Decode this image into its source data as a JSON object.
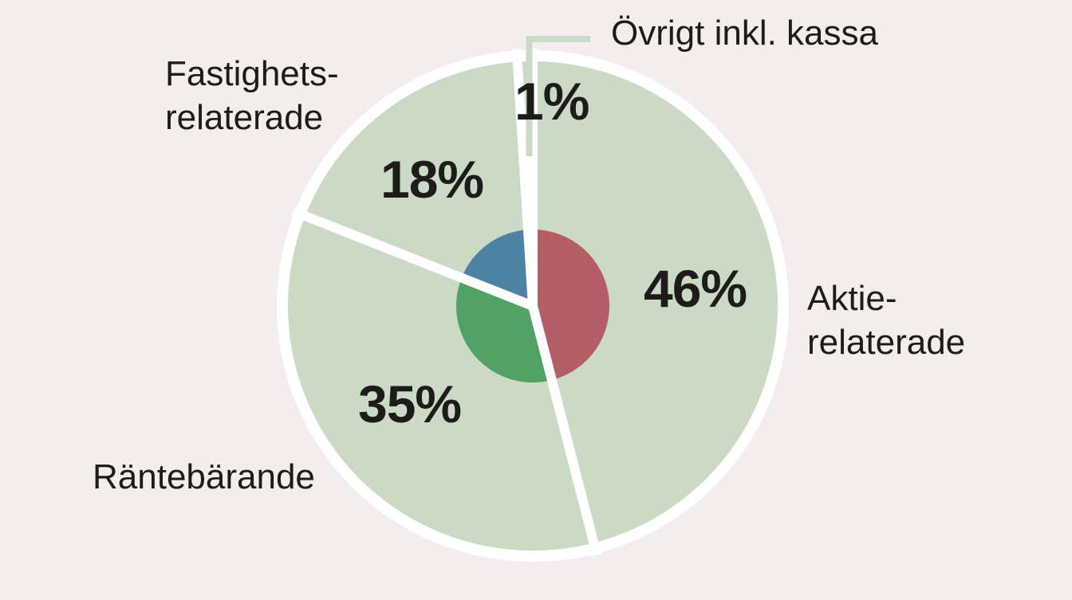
{
  "colors": {
    "background": "#f3edee",
    "text": "#1d1c1a",
    "slice_fill": "#cbdac4",
    "divider": "#ffffff",
    "outer_ring": "#ffffff"
  },
  "chart_data": {
    "type": "pie",
    "direction": "clockwise",
    "start_angle_deg": 0,
    "outer_slice_color": "#cbdac4",
    "slices": [
      {
        "id": "aktierelaterade",
        "label": "Aktie-relaterade",
        "value": 46,
        "pct_label": "46%",
        "inner_color": "#b35e66"
      },
      {
        "id": "rantebarande",
        "label": "Räntebärande",
        "value": 35,
        "pct_label": "35%",
        "inner_color": "#52a166"
      },
      {
        "id": "fastighetsrelaterade",
        "label": "Fastighets-relaterade",
        "value": 18,
        "pct_label": "18%",
        "inner_color": "#4e82a2"
      },
      {
        "id": "ovrigt",
        "label": "Övrigt inkl. kassa",
        "value": 1,
        "pct_label": "1%",
        "inner_color": null
      }
    ]
  },
  "labels": {
    "ovrigt": "Övrigt inkl. kassa",
    "fastighets": {
      "line1": "Fastighets-",
      "line2": "relaterade"
    },
    "aktie": {
      "line1": "Aktie-",
      "line2": "relaterade"
    },
    "rante": "Räntebärande"
  }
}
